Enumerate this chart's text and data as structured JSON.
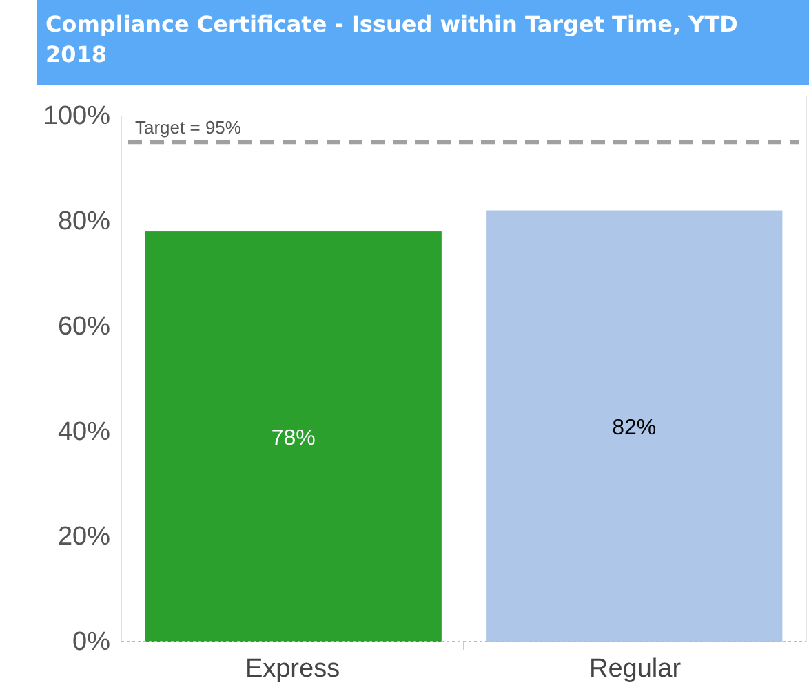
{
  "chart_data": {
    "type": "bar",
    "title": "Compliance Certificate - Issued within Target Time, YTD 2018",
    "categories": [
      "Express",
      "Regular"
    ],
    "values": [
      78,
      82
    ],
    "colors": [
      "#2ca02c",
      "#aec7e8"
    ],
    "value_labels": [
      "78%",
      "82%"
    ],
    "ylim": [
      0,
      100
    ],
    "yticks": [
      {
        "value": 0,
        "label": "0%"
      },
      {
        "value": 20,
        "label": "20%"
      },
      {
        "value": 40,
        "label": "40%"
      },
      {
        "value": 60,
        "label": "60%"
      },
      {
        "value": 80,
        "label": "80%"
      },
      {
        "value": 100,
        "label": "100%"
      }
    ],
    "ref_lines": [
      {
        "axis": "y",
        "value": 95,
        "label": "Target = 95%",
        "color": "#a0a0a0",
        "line_style": "dashed"
      }
    ],
    "grid": false
  }
}
